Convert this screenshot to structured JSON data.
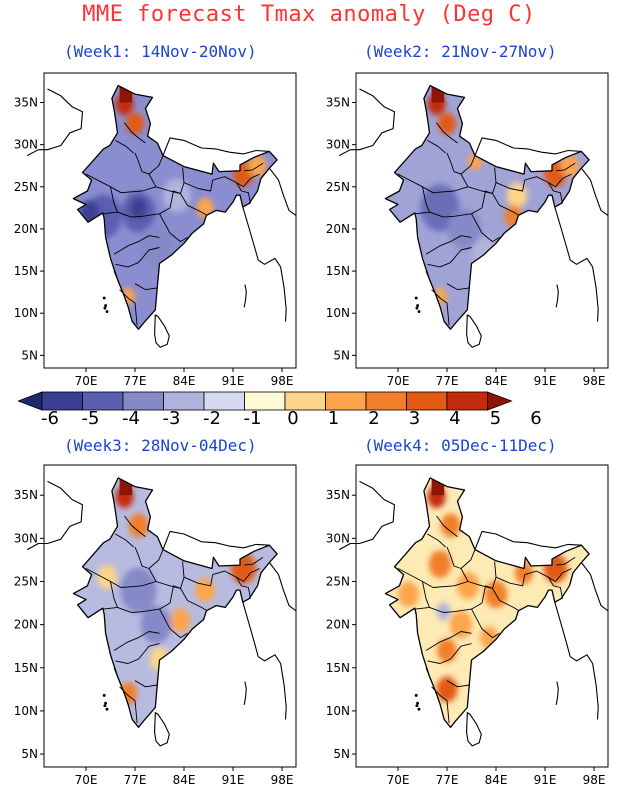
{
  "title": "MME forecast Tmax anomaly (Deg C)",
  "legend": {
    "labels": [
      "-6",
      "-5",
      "-4",
      "-3",
      "-2",
      "-1",
      "0",
      "1",
      "2",
      "3",
      "4",
      "5",
      "6"
    ],
    "colors": [
      "#1f2a6e",
      "#3a3f94",
      "#5b5fb0",
      "#8589c7",
      "#b0b3dc",
      "#d6d8ee",
      "#fdf8d6",
      "#fdd58a",
      "#fca54c",
      "#f07f2c",
      "#e25a15",
      "#c42a0c",
      "#8e1406"
    ]
  },
  "axes": {
    "y_ticks": [
      "35N",
      "30N",
      "25N",
      "20N",
      "15N",
      "10N",
      "5N"
    ],
    "x_ticks": [
      "70E",
      "77E",
      "84E",
      "91E",
      "98E"
    ]
  },
  "panels": [
    {
      "title": "(Week1: 14Nov-20Nov)",
      "cool_color": "#8a8ed0",
      "blobs": [
        {
          "color": "#5b5fb0",
          "lon": 72.5,
          "lat": 21.5,
          "r": 2.6
        },
        {
          "color": "#3a3f94",
          "lon": 70.5,
          "lat": 22.0,
          "r": 1.4
        },
        {
          "color": "#5b5fb0",
          "lon": 77.5,
          "lat": 22.0,
          "r": 2.4
        },
        {
          "color": "#3a3f94",
          "lon": 77.5,
          "lat": 22.5,
          "r": 1.2
        },
        {
          "color": "#8589c7",
          "lon": 80.0,
          "lat": 18.0,
          "r": 2.5
        },
        {
          "color": "#b0b3dc",
          "lon": 83.0,
          "lat": 24.0,
          "r": 2.0
        },
        {
          "color": "#fca54c",
          "lon": 87.0,
          "lat": 22.5,
          "r": 1.2
        },
        {
          "color": "#fca54c",
          "lon": 76.0,
          "lat": 12.0,
          "r": 1.0
        },
        {
          "color": "#e25a15",
          "lon": 92.5,
          "lat": 26.5,
          "r": 1.5
        },
        {
          "color": "#fca54c",
          "lon": 94.5,
          "lat": 27.5,
          "r": 1.3
        },
        {
          "color": "#e25a15",
          "lon": 77.0,
          "lat": 32.5,
          "r": 1.3
        },
        {
          "color": "#c42a0c",
          "lon": 75.5,
          "lat": 34.8,
          "r": 1.3
        }
      ]
    },
    {
      "title": "(Week2: 21Nov-27Nov)",
      "cool_color": "#a0a3d6",
      "blobs": [
        {
          "color": "#6a6eb9",
          "lon": 76.0,
          "lat": 22.5,
          "r": 2.8
        },
        {
          "color": "#8589c7",
          "lon": 79.5,
          "lat": 20.0,
          "r": 2.4
        },
        {
          "color": "#b0b3dc",
          "lon": 82.5,
          "lat": 17.0,
          "r": 2.0
        },
        {
          "color": "#fdd58a",
          "lon": 87.0,
          "lat": 24.0,
          "r": 1.5
        },
        {
          "color": "#f07f2c",
          "lon": 86.5,
          "lat": 21.5,
          "r": 1.3
        },
        {
          "color": "#fca54c",
          "lon": 76.0,
          "lat": 12.0,
          "r": 1.0
        },
        {
          "color": "#e25a15",
          "lon": 92.5,
          "lat": 26.5,
          "r": 1.6
        },
        {
          "color": "#fca54c",
          "lon": 94.5,
          "lat": 27.5,
          "r": 1.3
        },
        {
          "color": "#fca54c",
          "lon": 81.0,
          "lat": 28.0,
          "r": 1.0
        },
        {
          "color": "#e25a15",
          "lon": 77.0,
          "lat": 32.5,
          "r": 1.3
        },
        {
          "color": "#c42a0c",
          "lon": 75.5,
          "lat": 34.8,
          "r": 1.3
        }
      ]
    },
    {
      "title": "(Week3: 28Nov-04Dec)",
      "cool_color": "#b8bbe0",
      "blobs": [
        {
          "color": "#8589c7",
          "lon": 77.5,
          "lat": 24.0,
          "r": 2.6
        },
        {
          "color": "#8589c7",
          "lon": 80.0,
          "lat": 20.0,
          "r": 2.2
        },
        {
          "color": "#fdd58a",
          "lon": 73.0,
          "lat": 25.5,
          "r": 1.4
        },
        {
          "color": "#fca54c",
          "lon": 83.5,
          "lat": 20.5,
          "r": 1.4
        },
        {
          "color": "#fdd58a",
          "lon": 80.5,
          "lat": 16.0,
          "r": 1.4
        },
        {
          "color": "#f07f2c",
          "lon": 76.0,
          "lat": 12.0,
          "r": 1.3
        },
        {
          "color": "#e25a15",
          "lon": 92.5,
          "lat": 26.5,
          "r": 1.8
        },
        {
          "color": "#fca54c",
          "lon": 87.0,
          "lat": 24.0,
          "r": 1.4
        },
        {
          "color": "#f07f2c",
          "lon": 77.5,
          "lat": 31.5,
          "r": 1.4
        },
        {
          "color": "#c42a0c",
          "lon": 75.5,
          "lat": 34.8,
          "r": 1.3
        }
      ]
    },
    {
      "title": "(Week4: 05Dec-11Dec)",
      "cool_color": "#fdeab5",
      "blobs": [
        {
          "color": "#fca54c",
          "lon": 71.5,
          "lat": 23.5,
          "r": 1.5
        },
        {
          "color": "#f07f2c",
          "lon": 76.0,
          "lat": 27.0,
          "r": 1.6
        },
        {
          "color": "#fca54c",
          "lon": 80.0,
          "lat": 24.5,
          "r": 1.6
        },
        {
          "color": "#f07f2c",
          "lon": 84.0,
          "lat": 23.5,
          "r": 1.6
        },
        {
          "color": "#fca54c",
          "lon": 79.0,
          "lat": 20.0,
          "r": 1.6
        },
        {
          "color": "#f07f2c",
          "lon": 77.0,
          "lat": 17.0,
          "r": 1.4
        },
        {
          "color": "#e25a15",
          "lon": 77.0,
          "lat": 12.5,
          "r": 1.5
        },
        {
          "color": "#fca54c",
          "lon": 83.0,
          "lat": 18.5,
          "r": 1.3
        },
        {
          "color": "#b0b3dc",
          "lon": 76.5,
          "lat": 21.5,
          "r": 1.0
        },
        {
          "color": "#e25a15",
          "lon": 92.5,
          "lat": 26.5,
          "r": 1.7
        },
        {
          "color": "#f07f2c",
          "lon": 88.0,
          "lat": 26.0,
          "r": 1.3
        },
        {
          "color": "#f07f2c",
          "lon": 77.5,
          "lat": 31.5,
          "r": 1.4
        },
        {
          "color": "#c42a0c",
          "lon": 75.5,
          "lat": 34.8,
          "r": 1.3
        }
      ]
    }
  ]
}
